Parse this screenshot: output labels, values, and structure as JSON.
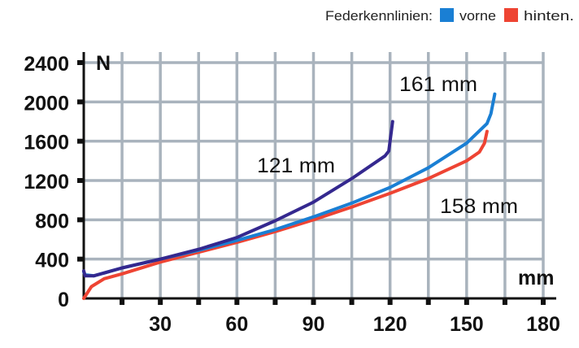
{
  "chart_data": {
    "type": "line",
    "title": "",
    "legend": {
      "title": "Federkennlinien:",
      "placement": "top-right",
      "entries": [
        {
          "label": "vorne",
          "color": "#1a7fd4"
        },
        {
          "label": "hinten.",
          "color": "#ee4433"
        }
      ]
    },
    "xlabel": "mm",
    "ylabel": "N",
    "xlim": [
      0,
      180
    ],
    "ylim": [
      0,
      2400
    ],
    "grid": true,
    "x_grid_step": 15,
    "y_grid_step": 400,
    "x_ticks": [
      "30",
      "60",
      "90",
      "120",
      "150",
      "180"
    ],
    "x_tick_values": [
      30,
      60,
      90,
      120,
      150,
      180
    ],
    "y_ticks": [
      "0",
      "400",
      "800",
      "1200",
      "1600",
      "2000",
      "2400"
    ],
    "y_tick_values": [
      0,
      400,
      800,
      1200,
      1600,
      2000,
      2400
    ],
    "series": [
      {
        "color": "#34288f",
        "annotation": "121 mm",
        "x": [
          0,
          0.5,
          4,
          15,
          30,
          45,
          60,
          75,
          90,
          105,
          118,
          119.5,
          121
        ],
        "y": [
          280,
          230,
          230,
          310,
          400,
          500,
          620,
          790,
          980,
          1220,
          1450,
          1500,
          1800
        ]
      },
      {
        "color": "#1a7fd4",
        "annotation": "161 mm",
        "x": [
          0,
          0.5,
          4,
          15,
          30,
          45,
          60,
          75,
          90,
          105,
          120,
          135,
          150,
          158,
          159.5,
          161
        ],
        "y": [
          270,
          240,
          230,
          310,
          400,
          490,
          590,
          700,
          830,
          970,
          1130,
          1330,
          1580,
          1780,
          1880,
          2080
        ]
      },
      {
        "color": "#ee4433",
        "annotation": "158 mm",
        "x": [
          0,
          3,
          8,
          15,
          30,
          45,
          60,
          75,
          90,
          105,
          120,
          135,
          150,
          155,
          157,
          158
        ],
        "y": [
          0,
          120,
          200,
          250,
          370,
          470,
          570,
          680,
          800,
          930,
          1070,
          1220,
          1400,
          1490,
          1580,
          1700
        ]
      }
    ]
  }
}
